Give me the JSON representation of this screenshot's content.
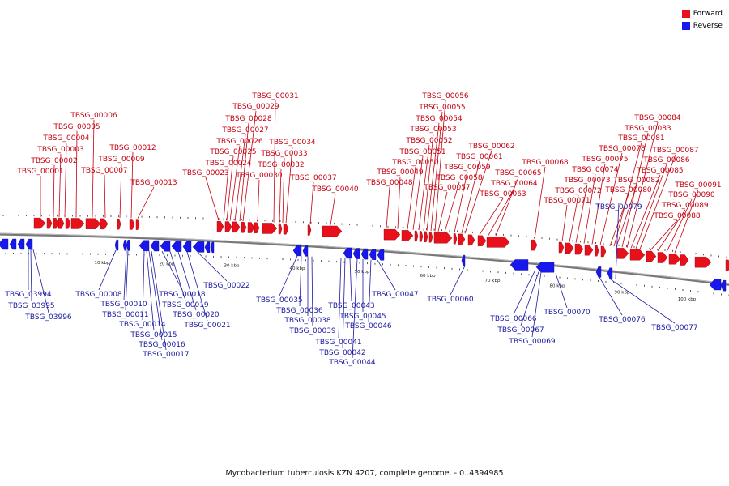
{
  "legend": {
    "forward_label": "Forward",
    "reverse_label": "Reverse",
    "forward_color": "#e8101b",
    "reverse_color": "#1818ee"
  },
  "caption": "Mycobacterium tuberculosis KZN 4207, complete genome. - 0..4394985",
  "scale_labels": [
    "10 kbp",
    "20 kbp",
    "30 kbp",
    "40 kbp",
    "50 kbp",
    "60 kbp",
    "70 kbp",
    "80 kbp",
    "90 kbp",
    "100 kbp"
  ],
  "forward_genes": [
    "TBSG_00001",
    "TBSG_00002",
    "TBSG_00003",
    "TBSG_00004",
    "TBSG_00005",
    "TBSG_00006",
    "TBSG_00007",
    "TBSG_00009",
    "TBSG_00012",
    "TBSG_00013",
    "TBSG_00023",
    "TBSG_00024",
    "TBSG_00025",
    "TBSG_00026",
    "TBSG_00027",
    "TBSG_00028",
    "TBSG_00029",
    "TBSG_00030",
    "TBSG_00031",
    "TBSG_00032",
    "TBSG_00033",
    "TBSG_00034",
    "TBSG_00037",
    "TBSG_00040",
    "TBSG_00048",
    "TBSG_00049",
    "TBSG_00050",
    "TBSG_00051",
    "TBSG_00052",
    "TBSG_00053",
    "TBSG_00054",
    "TBSG_00055",
    "TBSG_00056",
    "TBSG_00057",
    "TBSG_00058",
    "TBSG_00059",
    "TBSG_00061",
    "TBSG_00062",
    "TBSG_00063",
    "TBSG_00064",
    "TBSG_00065",
    "TBSG_00068",
    "TBSG_00071",
    "TBSG_00072",
    "TBSG_00073",
    "TBSG_00074",
    "TBSG_00075",
    "TBSG_00078",
    "TBSG_00080",
    "TBSG_00081",
    "TBSG_00082",
    "TBSG_00083",
    "TBSG_00084",
    "TBSG_00085",
    "TBSG_00086",
    "TBSG_00087",
    "TBSG_00088",
    "TBSG_00089",
    "TBSG_00090",
    "TBSG_00091"
  ],
  "reverse_genes": [
    "TBSG_03994",
    "TBSG_03995",
    "TBSG_03996",
    "TBSG_00008",
    "TBSG_00010",
    "TBSG_00011",
    "TBSG_00014",
    "TBSG_00015",
    "TBSG_00016",
    "TBSG_00017",
    "TBSG_00018",
    "TBSG_00019",
    "TBSG_00020",
    "TBSG_00021",
    "TBSG_00022",
    "TBSG_00035",
    "TBSG_00036",
    "TBSG_00038",
    "TBSG_00039",
    "TBSG_00041",
    "TBSG_00042",
    "TBSG_00043",
    "TBSG_00044",
    "TBSG_00045",
    "TBSG_00046",
    "TBSG_00047",
    "TBSG_00060",
    "TBSG_00066",
    "TBSG_00067",
    "TBSG_00069",
    "TBSG_00070",
    "TBSG_00076",
    "TBSG_00077",
    "TBSG_00079"
  ]
}
